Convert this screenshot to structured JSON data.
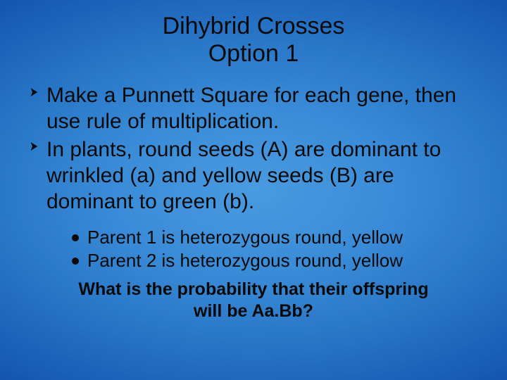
{
  "background": {
    "gradient_colors": [
      "#4a9ae0",
      "#3b8cd8",
      "#2a78c8",
      "#1960b8",
      "#0d4aa8"
    ],
    "type": "radial"
  },
  "text_color": "#0a0a0a",
  "title": {
    "line1": "Dihybrid Crosses",
    "line2": "Option 1",
    "fontsize": 34
  },
  "main_bullets": [
    "Make a Punnett Square for each gene, then use rule of multiplication.",
    "In plants, round seeds (A) are dominant to wrinkled (a) and yellow seeds (B) are dominant to green (b)."
  ],
  "main_bullet_fontsize": 30,
  "sub_bullets": [
    "Parent 1 is heterozygous round, yellow",
    "Parent 2 is heterozygous round, yellow"
  ],
  "sub_bullet_fontsize": 26,
  "question": {
    "line1": "What is the probability that their offspring",
    "line2": "will be Aa.Bb?",
    "fontsize": 25,
    "fontweight": 700
  }
}
